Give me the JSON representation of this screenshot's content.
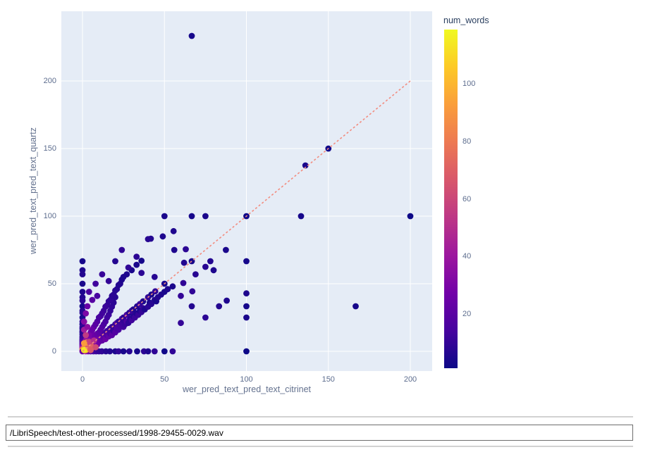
{
  "chart_data": {
    "type": "scatter",
    "title": "",
    "xlabel": "wer_pred_text_pred_text_citrinet",
    "ylabel": "wer_pred_text_pred_text_quartz",
    "x_ticks": [
      0,
      50,
      100,
      150,
      200
    ],
    "y_ticks": [
      0,
      50,
      100,
      150,
      200
    ],
    "xlim": [
      -13,
      213
    ],
    "ylim": [
      -15,
      251
    ],
    "grid": true,
    "plot_bg_color": "#e5ecf6",
    "grid_color": "#ffffff",
    "tick_color": "#5d6d8e",
    "marker_colorscale": "plasma",
    "reference_line": {
      "from": [
        0,
        0
      ],
      "to": [
        200,
        200
      ],
      "style": "dashed",
      "color": "#f28c7f"
    },
    "colorbar": {
      "title": "num_words",
      "ticks": [
        20,
        40,
        60,
        80,
        100
      ],
      "min": 1,
      "max": 119
    },
    "points_format": [
      "x",
      "y",
      "num_words"
    ],
    "points": [
      [
        66.67,
        233.33,
        3
      ],
      [
        150,
        150,
        2
      ],
      [
        136,
        137.5,
        4
      ],
      [
        50,
        100,
        4
      ],
      [
        66.67,
        100,
        3
      ],
      [
        75,
        100,
        4
      ],
      [
        100,
        100,
        2
      ],
      [
        133.33,
        100,
        3
      ],
      [
        200,
        100,
        1
      ],
      [
        166.67,
        33.33,
        3
      ],
      [
        100,
        66.67,
        3
      ],
      [
        100,
        42.86,
        5
      ],
      [
        100,
        33.33,
        3
      ],
      [
        100,
        25,
        4
      ],
      [
        100,
        0,
        1
      ],
      [
        55.56,
        88.89,
        5
      ],
      [
        41.67,
        83.33,
        6
      ],
      [
        40,
        83,
        7
      ],
      [
        49,
        85,
        5
      ],
      [
        24,
        75,
        9
      ],
      [
        56,
        75,
        5
      ],
      [
        63,
        75.5,
        8
      ],
      [
        87.5,
        75,
        4
      ],
      [
        78,
        66.67,
        6
      ],
      [
        66.67,
        66.67,
        3
      ],
      [
        75,
        62.5,
        7
      ],
      [
        80,
        60,
        5
      ],
      [
        69,
        57,
        7
      ],
      [
        62,
        65.5,
        6
      ],
      [
        61.5,
        50.5,
        9
      ],
      [
        67,
        44.4,
        9
      ],
      [
        60,
        41,
        10
      ],
      [
        66.67,
        33.33,
        6
      ],
      [
        83.33,
        33.33,
        6
      ],
      [
        88,
        37.5,
        5
      ],
      [
        75,
        25,
        8
      ],
      [
        60,
        21,
        10
      ],
      [
        0,
        66.67,
        3
      ],
      [
        0,
        60,
        5
      ],
      [
        0,
        57,
        6
      ],
      [
        0,
        50,
        4
      ],
      [
        0,
        44,
        5
      ],
      [
        0,
        40,
        6
      ],
      [
        0,
        37.5,
        8
      ],
      [
        0,
        33.33,
        3
      ],
      [
        0,
        30,
        7
      ],
      [
        0,
        28.5,
        7
      ],
      [
        0,
        25,
        4
      ],
      [
        0,
        22,
        9
      ],
      [
        0,
        20,
        5
      ],
      [
        0,
        18,
        11
      ],
      [
        0,
        16.67,
        6
      ],
      [
        0,
        15,
        8
      ],
      [
        0,
        14,
        7
      ],
      [
        0,
        12.5,
        8
      ],
      [
        0,
        11,
        9
      ],
      [
        0,
        10,
        10
      ],
      [
        0,
        9,
        11
      ],
      [
        0,
        8.3,
        12
      ],
      [
        0,
        7.7,
        13
      ],
      [
        0,
        7,
        14
      ],
      [
        0,
        6.2,
        16
      ],
      [
        0,
        5.6,
        18
      ],
      [
        0,
        5,
        20
      ],
      [
        0,
        4.3,
        23
      ],
      [
        0,
        3.7,
        27
      ],
      [
        0,
        3.1,
        32
      ],
      [
        0,
        2.6,
        38
      ],
      [
        0,
        2,
        50
      ],
      [
        0,
        1.4,
        70
      ],
      [
        0,
        0.9,
        90
      ],
      [
        0,
        0,
        25
      ],
      [
        2,
        0,
        45
      ],
      [
        3.5,
        0,
        30
      ],
      [
        5,
        0,
        22
      ],
      [
        6.7,
        0,
        15
      ],
      [
        8.3,
        0,
        12
      ],
      [
        10,
        0,
        10
      ],
      [
        11.8,
        0,
        9
      ],
      [
        14.3,
        0,
        7
      ],
      [
        16.7,
        0,
        6
      ],
      [
        20,
        0,
        5
      ],
      [
        22,
        0,
        9
      ],
      [
        25,
        0,
        4
      ],
      [
        28.6,
        0,
        7
      ],
      [
        33.33,
        0,
        3
      ],
      [
        37.5,
        0,
        8
      ],
      [
        40,
        0,
        5
      ],
      [
        44,
        0,
        9
      ],
      [
        50,
        0,
        2
      ],
      [
        55,
        0,
        9
      ],
      [
        5,
        5,
        40
      ],
      [
        7,
        7,
        28
      ],
      [
        9,
        9,
        22
      ],
      [
        10,
        10,
        20
      ],
      [
        11,
        11,
        18
      ],
      [
        12.5,
        12.5,
        16
      ],
      [
        14,
        14,
        14
      ],
      [
        15,
        15,
        13
      ],
      [
        16.7,
        16.7,
        12
      ],
      [
        18,
        18,
        11
      ],
      [
        20,
        20,
        10
      ],
      [
        21,
        21,
        19
      ],
      [
        22,
        22,
        9
      ],
      [
        24,
        24,
        17
      ],
      [
        25,
        25,
        8
      ],
      [
        27,
        27,
        15
      ],
      [
        28.6,
        28.6,
        7
      ],
      [
        30,
        30,
        13
      ],
      [
        31,
        31,
        6
      ],
      [
        33.33,
        33.33,
        6
      ],
      [
        35,
        35,
        11
      ],
      [
        37,
        37,
        5
      ],
      [
        40,
        40,
        10
      ],
      [
        42,
        42,
        4
      ],
      [
        44.4,
        44.4,
        9
      ],
      [
        50,
        50,
        4
      ],
      [
        2,
        3,
        60
      ],
      [
        3,
        2,
        55
      ],
      [
        2,
        5,
        48
      ],
      [
        4,
        4,
        52
      ],
      [
        5,
        3,
        44
      ],
      [
        3,
        7,
        40
      ],
      [
        6,
        5,
        38
      ],
      [
        5,
        8,
        35
      ],
      [
        7,
        4,
        42
      ],
      [
        8,
        6,
        33
      ],
      [
        6,
        9,
        30
      ],
      [
        9,
        5,
        31
      ],
      [
        8,
        10,
        28
      ],
      [
        10,
        7,
        26
      ],
      [
        7,
        12,
        25
      ],
      [
        11,
        9,
        24
      ],
      [
        9,
        13,
        23
      ],
      [
        12,
        8,
        22
      ],
      [
        10,
        14,
        21
      ],
      [
        13,
        10,
        20
      ],
      [
        11,
        16,
        19
      ],
      [
        14,
        9,
        25
      ],
      [
        12,
        18,
        18
      ],
      [
        15,
        12,
        17
      ],
      [
        13,
        20,
        16
      ],
      [
        16,
        11,
        22
      ],
      [
        14,
        22,
        15
      ],
      [
        17,
        13,
        14
      ],
      [
        15,
        25,
        13
      ],
      [
        18,
        12,
        20
      ],
      [
        16,
        27,
        12
      ],
      [
        19,
        15,
        11
      ],
      [
        17,
        30,
        10
      ],
      [
        20,
        14,
        18
      ],
      [
        18,
        33,
        9
      ],
      [
        21,
        17,
        16
      ],
      [
        19,
        36,
        8
      ],
      [
        22,
        16,
        15
      ],
      [
        20,
        40,
        7
      ],
      [
        23,
        19,
        14
      ],
      [
        25,
        18,
        13
      ],
      [
        24,
        21,
        12
      ],
      [
        26,
        20,
        11
      ],
      [
        25,
        23,
        10
      ],
      [
        27,
        22,
        16
      ],
      [
        28,
        21,
        9
      ],
      [
        29,
        24,
        8
      ],
      [
        30,
        23,
        13
      ],
      [
        31,
        26,
        7
      ],
      [
        32,
        25,
        12
      ],
      [
        33,
        28,
        6
      ],
      [
        34,
        27,
        11
      ],
      [
        35,
        30,
        5
      ],
      [
        36,
        29,
        10
      ],
      [
        37,
        32,
        9
      ],
      [
        38,
        31,
        5
      ],
      [
        40,
        33,
        8
      ],
      [
        41,
        36,
        4
      ],
      [
        42,
        35,
        7
      ],
      [
        44,
        38,
        6
      ],
      [
        45,
        37,
        4
      ],
      [
        46,
        40,
        6
      ],
      [
        48,
        42,
        5
      ],
      [
        50,
        44,
        4
      ],
      [
        52,
        46,
        5
      ],
      [
        55,
        48,
        4
      ],
      [
        3,
        10,
        33
      ],
      [
        5,
        14,
        26
      ],
      [
        7,
        18,
        21
      ],
      [
        9,
        22,
        17
      ],
      [
        11,
        26,
        14
      ],
      [
        13,
        30,
        12
      ],
      [
        15,
        34,
        10
      ],
      [
        17,
        38,
        9
      ],
      [
        19,
        42,
        8
      ],
      [
        21,
        46,
        7
      ],
      [
        23,
        50,
        6
      ],
      [
        25,
        55,
        5
      ],
      [
        2,
        8,
        38
      ],
      [
        4,
        12,
        29
      ],
      [
        6,
        16,
        24
      ],
      [
        8,
        20,
        19
      ],
      [
        10,
        25,
        15
      ],
      [
        12,
        28,
        13
      ],
      [
        14,
        33,
        11
      ],
      [
        16,
        37,
        9
      ],
      [
        18,
        41,
        8
      ],
      [
        20,
        45,
        7
      ],
      [
        22,
        49,
        6
      ],
      [
        24,
        53,
        5
      ],
      [
        27,
        57,
        5
      ],
      [
        30,
        60,
        4
      ],
      [
        33,
        64,
        4
      ],
      [
        36,
        67,
        3
      ],
      [
        33,
        70,
        8
      ],
      [
        20,
        66.67,
        6
      ],
      [
        28,
        62,
        9
      ],
      [
        36,
        58,
        8
      ],
      [
        44,
        55,
        7
      ],
      [
        12,
        57,
        11
      ],
      [
        8,
        50,
        13
      ],
      [
        16,
        52,
        10
      ],
      [
        4,
        44,
        16
      ],
      [
        6,
        38,
        19
      ],
      [
        3,
        33.33,
        24
      ],
      [
        9,
        41,
        15
      ],
      [
        2,
        28,
        30
      ],
      [
        1,
        2,
        95
      ],
      [
        2,
        1,
        105
      ],
      [
        1.5,
        4,
        85
      ],
      [
        4,
        2.5,
        78
      ],
      [
        3,
        5,
        70
      ],
      [
        5,
        6,
        65
      ],
      [
        6,
        3,
        72
      ],
      [
        2.5,
        6.5,
        88
      ],
      [
        1,
        1,
        115
      ],
      [
        4,
        7,
        58
      ],
      [
        7,
        8,
        50
      ],
      [
        8,
        3,
        62
      ],
      [
        1,
        6,
        92
      ],
      [
        2,
        12,
        55
      ],
      [
        1,
        16,
        42
      ],
      [
        3,
        18,
        35
      ],
      [
        1,
        22,
        33
      ],
      [
        5,
        1,
        68
      ]
    ]
  },
  "footer": {
    "file_input_value": "/LibriSpeech/test-other-processed/1998-29455-0029.wav"
  }
}
